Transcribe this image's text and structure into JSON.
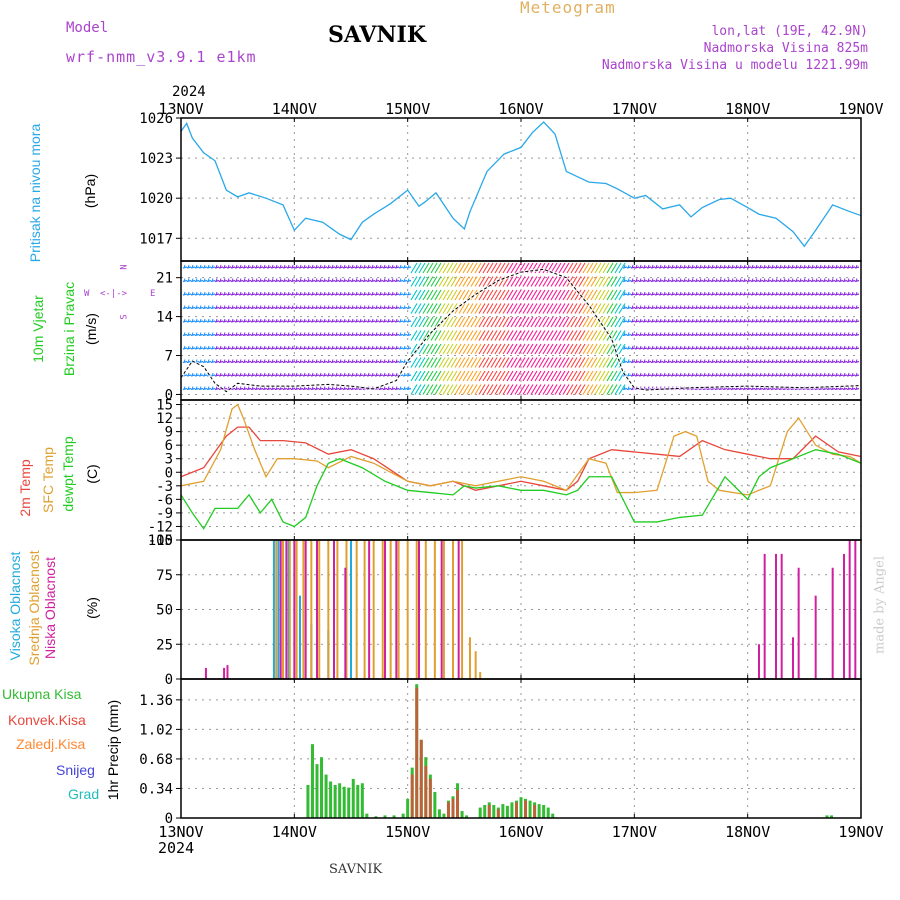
{
  "header": {
    "model_label": "Model",
    "model_name": "wrf-nmm_v3.9.1 e1km",
    "station": "SAVNIK",
    "meteogram": "Meteogram",
    "lonlat": "lon,lat (19E, 42.9N)",
    "altitude": "Nadmorska Visina 825m",
    "model_altitude": "Nadmorska Visina u modelu 1221.99m"
  },
  "footer": {
    "station": "SAVNIK",
    "watermark": "made by Angel"
  },
  "time_axis": {
    "year": "2024",
    "labels": [
      "13NOV",
      "14NOV",
      "15NOV",
      "16NOV",
      "17NOV",
      "18NOV",
      "19NOV"
    ]
  },
  "colors": {
    "pressure": "#29a8e8",
    "t2m": "#e8463c",
    "sfc": "#e0a030",
    "dew": "#22cc22",
    "high_cloud": "#22aadd",
    "mid_cloud": "#e0a030",
    "low_cloud": "#d020a0",
    "total_precip": "#33bb33",
    "conv_precip": "#e8463c",
    "frozen_precip": "#ff8833",
    "snow": "#4444dd",
    "hail": "#22bbbb",
    "wind_label": "#22cc22",
    "wind_compass": "#aa44cc"
  },
  "panels": {
    "pressure": {
      "title": "Pritisak na nivou mora",
      "unit": "(hPa)"
    },
    "wind": {
      "title_1": "10m Vjetar",
      "title_2": "Brzina i Pravac",
      "unit": "(m/s)",
      "compass": [
        "N",
        "E",
        "S",
        "W"
      ]
    },
    "temp": {
      "title_1": "2m Temp",
      "title_2": "SFC Temp",
      "title_3": "dewpt Temp",
      "unit": "(C)"
    },
    "cloud": {
      "title_1": "Visoka Oblacnost",
      "title_2": "Srednja Oblacnost",
      "title_3": "Niska Oblacnost",
      "unit": "(%)"
    },
    "precip": {
      "legend": [
        "Ukupna Kisa",
        "Konvek.Kisa",
        "Zaledj.Kisa",
        "Snijeg",
        "Grad"
      ],
      "unit": "1hr Precip (mm)"
    }
  },
  "chart_data": [
    {
      "type": "line",
      "name": "pressure",
      "ylabel": "(hPa)",
      "ylim": [
        1015.3,
        1026
      ],
      "yticks": [
        1017,
        1020,
        1023,
        1026
      ],
      "x": [
        0,
        0.05,
        0.1,
        0.2,
        0.3,
        0.4,
        0.5,
        0.6,
        0.75,
        0.9,
        1.0,
        1.1,
        1.25,
        1.4,
        1.5,
        1.6,
        1.7,
        1.85,
        2.0,
        2.1,
        2.15,
        2.25,
        2.4,
        2.5,
        2.55,
        2.7,
        2.85,
        3.0,
        3.1,
        3.2,
        3.3,
        3.4,
        3.5,
        3.6,
        3.75,
        3.85,
        4.0,
        4.1,
        4.25,
        4.4,
        4.5,
        4.6,
        4.75,
        4.85,
        5.0,
        5.1,
        5.25,
        5.4,
        5.5,
        5.6,
        5.75,
        5.9,
        6.0
      ],
      "values": [
        1025,
        1025.6,
        1024.5,
        1023.4,
        1022.8,
        1020.6,
        1020.1,
        1020.4,
        1020,
        1019.5,
        1017.6,
        1018.5,
        1018.2,
        1017.3,
        1016.9,
        1018.2,
        1018.8,
        1019.6,
        1020.6,
        1019.4,
        1019.7,
        1020.4,
        1018.5,
        1017.7,
        1019,
        1022,
        1023.3,
        1023.8,
        1024.9,
        1025.7,
        1024.8,
        1022,
        1021.6,
        1021.2,
        1021.1,
        1020.7,
        1020,
        1020.2,
        1019.2,
        1019.5,
        1018.6,
        1019.3,
        1019.9,
        1020,
        1019.3,
        1018.8,
        1018.5,
        1017.5,
        1016.4,
        1017.6,
        1019.5,
        1019,
        1018.7
      ]
    },
    {
      "type": "line",
      "name": "wind_speed",
      "ylabel": "(m/s)",
      "ylim": [
        -1,
        24
      ],
      "yticks": [
        0,
        7,
        14,
        21
      ],
      "x": [
        0,
        0.1,
        0.2,
        0.3,
        0.4,
        0.5,
        0.7,
        1.0,
        1.3,
        1.5,
        1.7,
        1.9,
        2.0,
        2.2,
        2.4,
        2.6,
        2.8,
        3.0,
        3.2,
        3.4,
        3.6,
        3.8,
        3.9,
        4.0,
        4.1,
        4.5,
        5.0,
        5.5,
        6.0
      ],
      "values": [
        3,
        6,
        5,
        2,
        0.5,
        2,
        1.5,
        1.5,
        1.8,
        1.5,
        1,
        2.5,
        6,
        11,
        15,
        18,
        20.5,
        22,
        22.5,
        21,
        16,
        10,
        4,
        1.2,
        0.8,
        1.2,
        1.5,
        1.2,
        1.6
      ]
    },
    {
      "type": "line",
      "name": "temperature",
      "ylabel": "(C)",
      "ylim": [
        -15,
        16
      ],
      "yticks": [
        -15,
        -12,
        -9,
        -6,
        -3,
        0,
        3,
        6,
        9,
        12,
        15
      ],
      "series": [
        {
          "name": "2m Temp",
          "x": [
            0,
            0.2,
            0.4,
            0.5,
            0.6,
            0.7,
            0.9,
            1.1,
            1.3,
            1.5,
            1.7,
            2.0,
            2.2,
            2.4,
            2.6,
            2.8,
            3.0,
            3.2,
            3.4,
            3.5,
            3.6,
            3.8,
            4.0,
            4.2,
            4.4,
            4.6,
            4.8,
            5.0,
            5.2,
            5.4,
            5.6,
            5.8,
            6.0
          ],
          "values": [
            -1,
            1,
            8,
            10,
            10,
            7,
            7,
            6.5,
            4,
            5,
            3,
            -2,
            -3,
            -2,
            -4,
            -3,
            -2,
            -3,
            -4,
            -2,
            3,
            5,
            4.5,
            4,
            3.5,
            7,
            5,
            4,
            3,
            3,
            8,
            4.5,
            3.5
          ]
        },
        {
          "name": "SFC Temp",
          "x": [
            0,
            0.2,
            0.35,
            0.45,
            0.5,
            0.55,
            0.65,
            0.75,
            0.85,
            1.0,
            1.2,
            1.3,
            1.5,
            1.7,
            2.0,
            2.2,
            2.4,
            2.6,
            2.8,
            3.0,
            3.2,
            3.4,
            3.6,
            3.75,
            3.85,
            4.0,
            4.2,
            4.35,
            4.45,
            4.55,
            4.65,
            4.75,
            5.0,
            5.2,
            5.35,
            5.45,
            5.6,
            5.75,
            5.9,
            6.0
          ],
          "values": [
            -3,
            -2,
            5,
            14,
            15,
            12,
            5,
            -1,
            3,
            3,
            2.5,
            1,
            3.5,
            2,
            -2,
            -3,
            -2,
            -3,
            -2,
            -1,
            -2,
            -4,
            3,
            2,
            -4.5,
            -4.5,
            -4,
            8,
            9,
            8,
            -2,
            -4,
            -5,
            -3,
            9,
            12,
            6,
            4,
            3.5,
            2
          ]
        },
        {
          "name": "dewpt Temp",
          "x": [
            0,
            0.1,
            0.2,
            0.3,
            0.5,
            0.6,
            0.7,
            0.8,
            0.9,
            1.0,
            1.1,
            1.2,
            1.3,
            1.4,
            1.6,
            1.8,
            2.0,
            2.2,
            2.4,
            2.5,
            2.6,
            2.8,
            3.0,
            3.2,
            3.4,
            3.5,
            3.6,
            3.8,
            3.9,
            4.0,
            4.2,
            4.4,
            4.6,
            4.8,
            5.0,
            5.1,
            5.2,
            5.4,
            5.6,
            5.8,
            6.0
          ],
          "values": [
            -5,
            -9,
            -12.5,
            -8,
            -8,
            -5,
            -9,
            -6,
            -11,
            -12,
            -10,
            -3,
            2,
            3,
            1,
            -2,
            -4,
            -4.5,
            -5,
            -3,
            -3.5,
            -3,
            -4,
            -4,
            -5,
            -4,
            -1,
            -1,
            -6,
            -11,
            -11,
            -10,
            -9.5,
            -1,
            -6,
            -1,
            1,
            3,
            5,
            4,
            2
          ]
        }
      ]
    },
    {
      "type": "bar",
      "name": "cloud_cover",
      "ylabel": "(%)",
      "ylim": [
        0,
        100
      ],
      "yticks": [
        0,
        25,
        50,
        75,
        100
      ],
      "series": [
        {
          "name": "Visoka Oblacnost",
          "x": [
            0.82,
            0.86,
            0.9,
            0.95,
            1.05,
            1.15,
            1.3,
            1.5
          ],
          "values": [
            100,
            100,
            100,
            100,
            60,
            40,
            35,
            100
          ]
        },
        {
          "name": "Srednja Oblacnost",
          "x": [
            0.84,
            0.9,
            0.96,
            1.02,
            1.08,
            1.15,
            1.22,
            1.3,
            1.38,
            1.46,
            1.55,
            1.62,
            1.7,
            1.78,
            1.85,
            1.92,
            2.0,
            2.08,
            2.16,
            2.24,
            2.32,
            2.4,
            2.48,
            2.55,
            2.6,
            2.64
          ],
          "values": [
            100,
            100,
            100,
            100,
            100,
            100,
            100,
            100,
            100,
            100,
            100,
            100,
            100,
            100,
            100,
            100,
            100,
            100,
            100,
            100,
            100,
            100,
            100,
            30,
            20,
            5
          ]
        },
        {
          "name": "Niska Oblacnost",
          "x": [
            0.22,
            0.38,
            0.41,
            0.88,
            0.93,
            1.0,
            1.1,
            1.2,
            1.35,
            1.45,
            1.66,
            1.8,
            1.9,
            2.1,
            2.3,
            2.45,
            5.1,
            5.15,
            5.25,
            5.3,
            5.4,
            5.45,
            5.6,
            5.75,
            5.85,
            5.9,
            5.95
          ],
          "values": [
            8,
            8,
            10,
            100,
            100,
            100,
            100,
            100,
            100,
            80,
            100,
            100,
            100,
            100,
            100,
            100,
            25,
            90,
            90,
            90,
            30,
            80,
            60,
            80,
            90,
            100,
            100
          ]
        }
      ]
    },
    {
      "type": "bar",
      "name": "precipitation",
      "ylabel": "1hr Precip (mm)",
      "ylim": [
        0,
        1.6
      ],
      "yticks": [
        0,
        0.34,
        0.68,
        1.02,
        1.36
      ],
      "series": [
        {
          "name": "Ukupna Kisa",
          "x": [
            1.12,
            1.16,
            1.2,
            1.24,
            1.28,
            1.32,
            1.36,
            1.4,
            1.44,
            1.48,
            1.52,
            1.56,
            1.6,
            1.64,
            1.72,
            1.8,
            1.88,
            1.96,
            2.0,
            2.04,
            2.08,
            2.12,
            2.16,
            2.2,
            2.24,
            2.28,
            2.32,
            2.36,
            2.4,
            2.44,
            2.48,
            2.52,
            2.64,
            2.68,
            2.72,
            2.76,
            2.8,
            2.84,
            2.88,
            2.92,
            2.96,
            3.0,
            3.04,
            3.08,
            3.12,
            3.16,
            3.2,
            3.24,
            3.28,
            5.7,
            5.74
          ],
          "values": [
            0.38,
            0.85,
            0.62,
            0.7,
            0.5,
            0.42,
            0.38,
            0.4,
            0.36,
            0.35,
            0.45,
            0.38,
            0.4,
            0.05,
            0.02,
            0.03,
            0.03,
            0.05,
            0.22,
            0.58,
            1.54,
            0.9,
            0.7,
            0.5,
            0.3,
            0.1,
            0.05,
            0.2,
            0.25,
            0.4,
            0.08,
            0.03,
            0.12,
            0.15,
            0.18,
            0.15,
            0.12,
            0.16,
            0.14,
            0.18,
            0.2,
            0.24,
            0.22,
            0.2,
            0.18,
            0.16,
            0.15,
            0.12,
            0.05,
            0.03,
            0.03
          ]
        },
        {
          "name": "Konvek.Kisa",
          "x": [
            2.04,
            2.08,
            2.12,
            2.16,
            2.2,
            2.36,
            2.4,
            2.44,
            2.72,
            2.8,
            2.96,
            3.04,
            3.12
          ],
          "values": [
            0.5,
            1.5,
            0.9,
            0.6,
            0.45,
            0.18,
            0.22,
            0.32,
            0.15,
            0.1,
            0.18,
            0.2,
            0.15
          ]
        }
      ]
    }
  ]
}
